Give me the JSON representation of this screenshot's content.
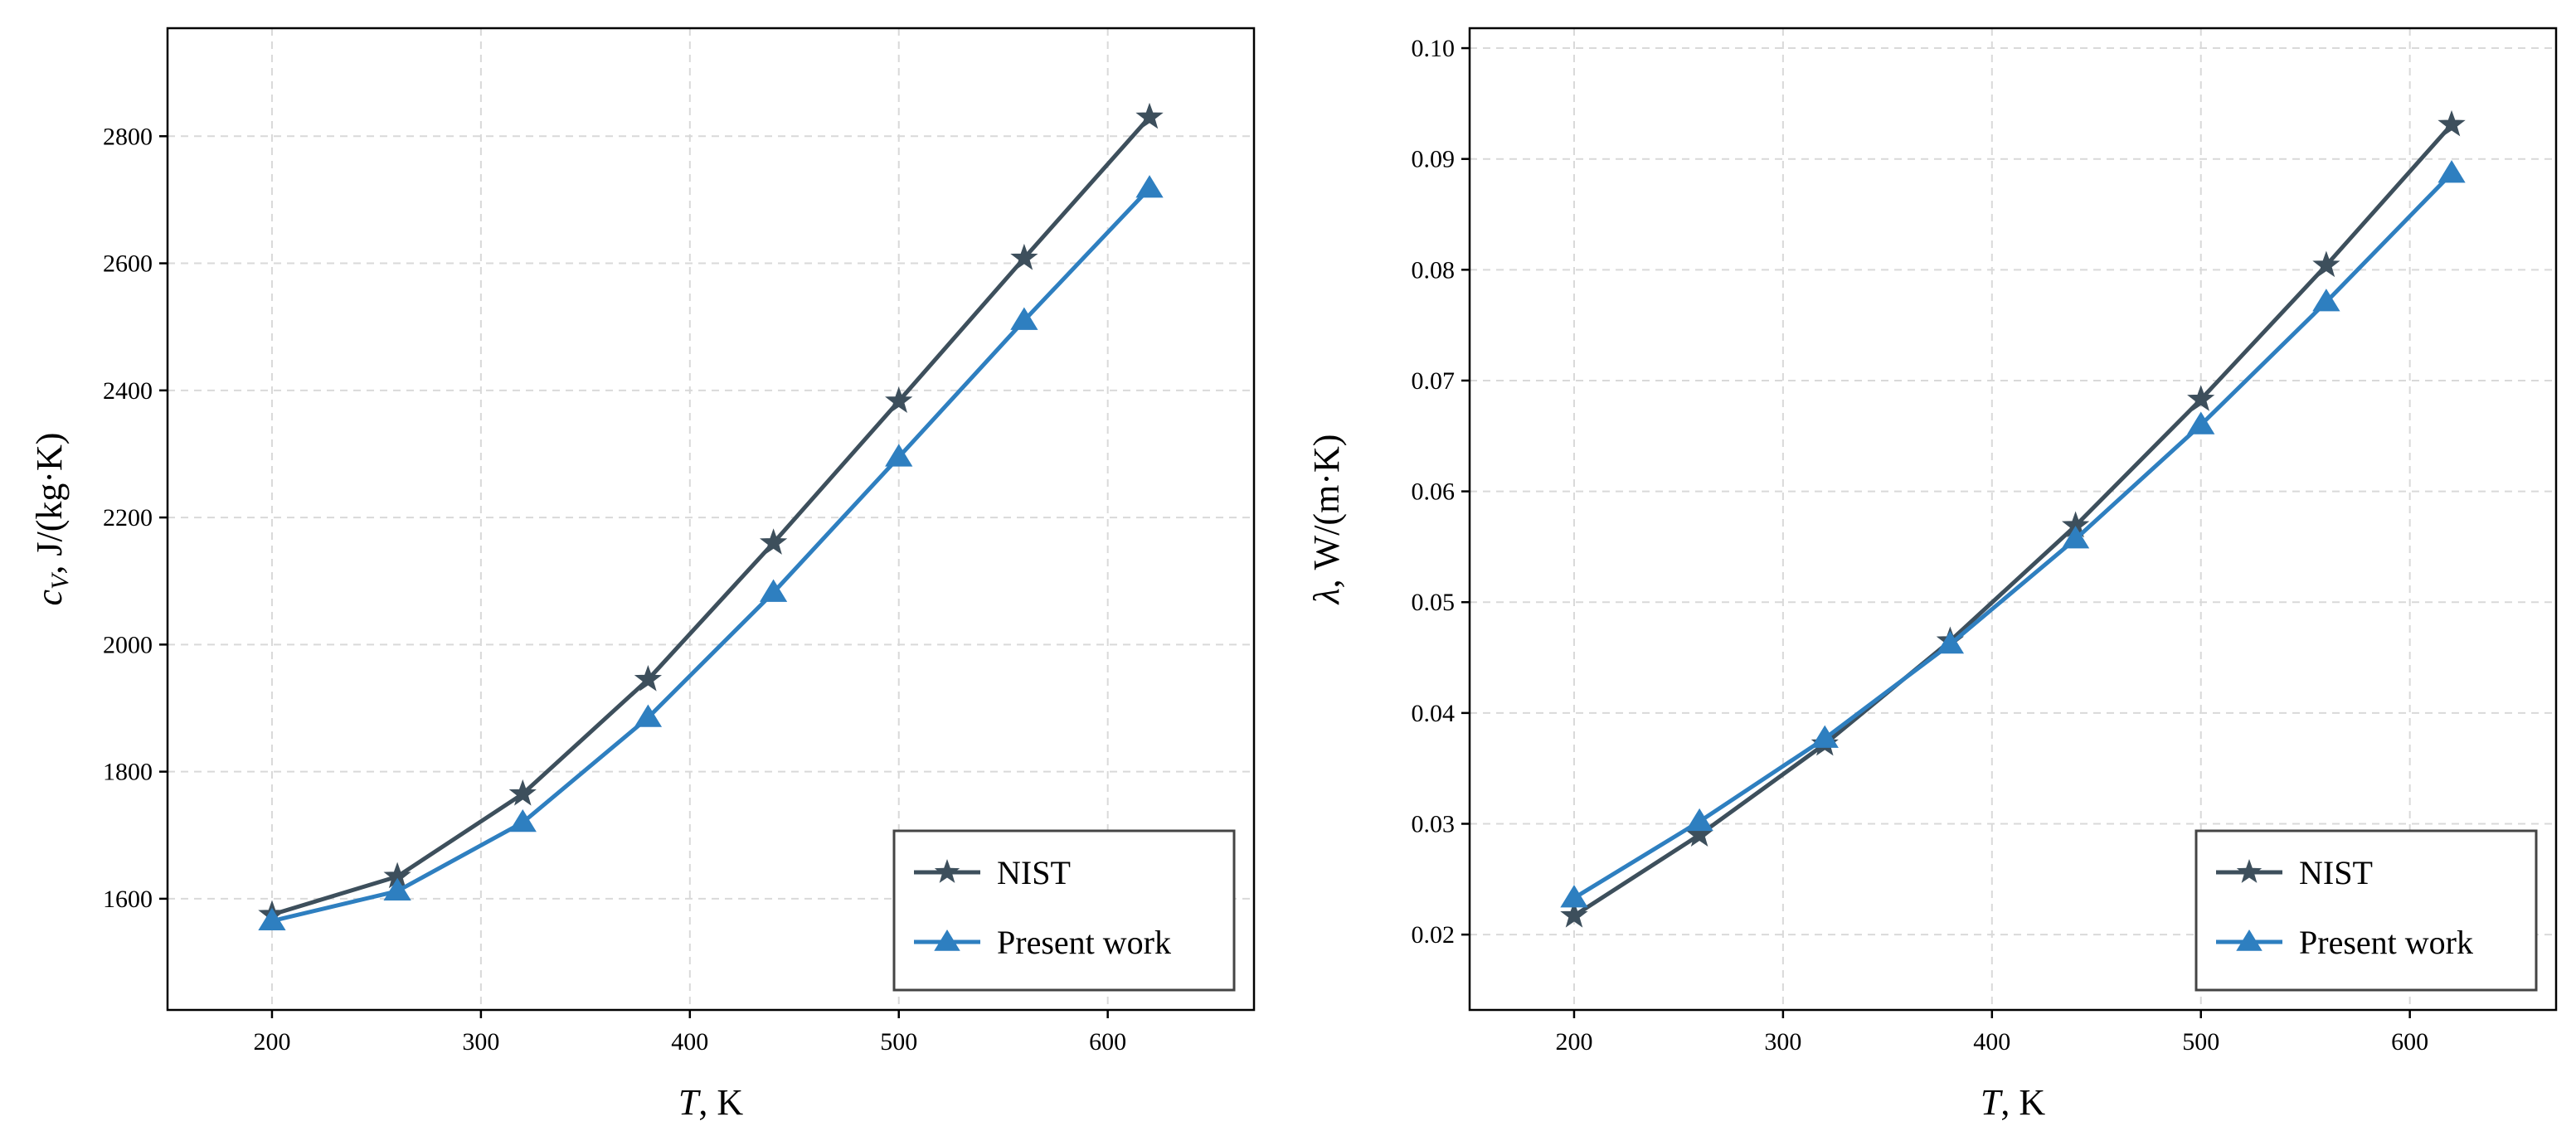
{
  "colors": {
    "nist": "#3d4f5c",
    "present": "#2e7fc0"
  },
  "chart_data": [
    {
      "type": "line",
      "xlabel": {
        "italic": "T",
        "rest": ", K"
      },
      "ylabel": {
        "symbol": "c",
        "sub": "V",
        "rest": ", J/(kg·K)"
      },
      "xlim": [
        150,
        670
      ],
      "ylim": [
        1425,
        2970
      ],
      "xticks": [
        200,
        300,
        400,
        500,
        600
      ],
      "yticks": [
        1600,
        1800,
        2000,
        2200,
        2400,
        2600,
        2800
      ],
      "ytick_decimals": 0,
      "grid": true,
      "legend_position": "lower-right",
      "x": [
        200,
        260,
        320,
        380,
        440,
        500,
        560,
        620
      ],
      "series": [
        {
          "name": "NIST",
          "marker": "star",
          "values": [
            1575,
            1635,
            1765,
            1945,
            2160,
            2383,
            2608,
            2830
          ]
        },
        {
          "name": "Present work",
          "marker": "triangle",
          "values": [
            1565,
            1612,
            1720,
            1885,
            2082,
            2295,
            2510,
            2718
          ]
        }
      ]
    },
    {
      "type": "line",
      "xlabel": {
        "italic": "T",
        "rest": ", K"
      },
      "ylabel": {
        "symbol": "λ",
        "sub": "",
        "rest": ", W/(m·K)"
      },
      "xlim": [
        150,
        670
      ],
      "ylim": [
        0.0132,
        0.1018
      ],
      "xticks": [
        200,
        300,
        400,
        500,
        600
      ],
      "yticks": [
        0.02,
        0.03,
        0.04,
        0.05,
        0.06,
        0.07,
        0.08,
        0.09,
        0.1
      ],
      "ytick_decimals": 2,
      "grid": true,
      "legend_position": "lower-right",
      "x": [
        200,
        260,
        320,
        380,
        440,
        500,
        560,
        620
      ],
      "series": [
        {
          "name": "NIST",
          "marker": "star",
          "values": [
            0.0217,
            0.029,
            0.0372,
            0.0465,
            0.0569,
            0.0683,
            0.0804,
            0.0931
          ]
        },
        {
          "name": "Present work",
          "marker": "triangle",
          "values": [
            0.0233,
            0.0302,
            0.0377,
            0.0462,
            0.0557,
            0.066,
            0.0771,
            0.0887
          ]
        }
      ]
    }
  ]
}
